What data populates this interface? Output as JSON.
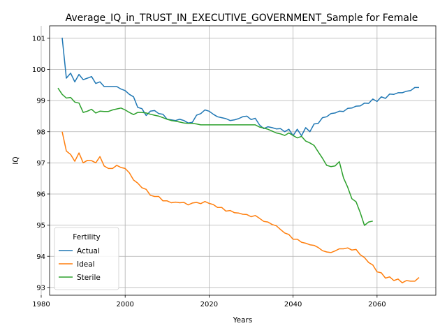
{
  "chart_data": {
    "type": "line",
    "title": "Average_IQ_in_TRUST_IN_EXECUTIVE_GOVERNMENT_Sample for Female",
    "xlabel": "Years",
    "ylabel": "IQ",
    "xlim": [
      1982,
      2074
    ],
    "ylim": [
      92.75,
      101.4
    ],
    "xticks": [
      1980,
      2000,
      2020,
      2040,
      2060
    ],
    "yticks": [
      93,
      94,
      95,
      96,
      97,
      98,
      99,
      100,
      101
    ],
    "grid": true,
    "legend": {
      "title": "Fertility",
      "position": "lower-left"
    },
    "series": [
      {
        "name": "Actual",
        "color": "#1f77b4",
        "x": [
          1985,
          1986,
          1987,
          1988,
          1989,
          1990,
          1991,
          1992,
          1993,
          1994,
          1995,
          1996,
          1997,
          1998,
          1999,
          2000,
          2001,
          2002,
          2003,
          2004,
          2005,
          2006,
          2007,
          2008,
          2009,
          2010,
          2011,
          2012,
          2013,
          2014,
          2015,
          2016,
          2017,
          2018,
          2019,
          2020,
          2021,
          2022,
          2023,
          2024,
          2025,
          2026,
          2027,
          2028,
          2029,
          2030,
          2031,
          2032,
          2033,
          2034,
          2035,
          2036,
          2037,
          2038,
          2039,
          2040,
          2041,
          2042,
          2043,
          2044,
          2045,
          2046,
          2047,
          2048,
          2049,
          2050,
          2051,
          2052,
          2053,
          2054,
          2055,
          2056,
          2057,
          2058,
          2059,
          2060,
          2061,
          2062,
          2063,
          2064,
          2065,
          2066,
          2067,
          2068,
          2069,
          2070
        ],
        "y": [
          101.02,
          99.72,
          99.88,
          99.6,
          99.84,
          99.67,
          99.72,
          99.77,
          99.55,
          99.6,
          99.45,
          99.45,
          99.45,
          99.45,
          99.37,
          99.32,
          99.2,
          99.12,
          98.78,
          98.74,
          98.52,
          98.66,
          98.68,
          98.58,
          98.56,
          98.4,
          98.38,
          98.36,
          98.4,
          98.36,
          98.28,
          98.3,
          98.53,
          98.58,
          98.7,
          98.66,
          98.56,
          98.48,
          98.45,
          98.42,
          98.36,
          98.38,
          98.42,
          98.48,
          98.5,
          98.39,
          98.43,
          98.22,
          98.1,
          98.16,
          98.13,
          98.09,
          98.1,
          98.0,
          98.08,
          97.87,
          98.08,
          97.87,
          98.13,
          98.0,
          98.25,
          98.27,
          98.45,
          98.48,
          98.58,
          98.6,
          98.66,
          98.65,
          98.75,
          98.76,
          98.82,
          98.83,
          98.92,
          98.91,
          99.05,
          98.97,
          99.12,
          99.07,
          99.21,
          99.2,
          99.25,
          99.25,
          99.3,
          99.32,
          99.42,
          99.42
        ]
      },
      {
        "name": "Ideal",
        "color": "#ff7f0e",
        "x": [
          1985,
          1986,
          1987,
          1988,
          1989,
          1990,
          1991,
          1992,
          1993,
          1994,
          1995,
          1996,
          1997,
          1998,
          1999,
          2000,
          2001,
          2002,
          2003,
          2004,
          2005,
          2006,
          2007,
          2008,
          2009,
          2010,
          2011,
          2012,
          2013,
          2014,
          2015,
          2016,
          2017,
          2018,
          2019,
          2020,
          2021,
          2022,
          2023,
          2024,
          2025,
          2026,
          2027,
          2028,
          2029,
          2030,
          2031,
          2032,
          2033,
          2034,
          2035,
          2036,
          2037,
          2038,
          2039,
          2040,
          2041,
          2042,
          2043,
          2044,
          2045,
          2046,
          2047,
          2048,
          2049,
          2050,
          2051,
          2052,
          2053,
          2054,
          2055,
          2056,
          2057,
          2058,
          2059,
          2060,
          2061,
          2062,
          2063,
          2064,
          2065,
          2066,
          2067,
          2068,
          2069,
          2070
        ],
        "y": [
          98.0,
          97.38,
          97.27,
          97.05,
          97.32,
          97.0,
          97.08,
          97.07,
          97.0,
          97.2,
          96.9,
          96.82,
          96.82,
          96.92,
          96.85,
          96.82,
          96.68,
          96.45,
          96.35,
          96.2,
          96.15,
          95.96,
          95.92,
          95.92,
          95.78,
          95.78,
          95.72,
          95.74,
          95.72,
          95.73,
          95.65,
          95.71,
          95.73,
          95.69,
          95.76,
          95.7,
          95.66,
          95.57,
          95.57,
          95.45,
          95.47,
          95.4,
          95.39,
          95.35,
          95.34,
          95.27,
          95.31,
          95.22,
          95.12,
          95.1,
          95.02,
          94.98,
          94.86,
          94.75,
          94.7,
          94.55,
          94.55,
          94.45,
          94.42,
          94.37,
          94.35,
          94.28,
          94.18,
          94.14,
          94.12,
          94.17,
          94.24,
          94.24,
          94.27,
          94.2,
          94.22,
          94.05,
          93.96,
          93.8,
          93.72,
          93.5,
          93.47,
          93.3,
          93.34,
          93.22,
          93.27,
          93.15,
          93.22,
          93.2,
          93.2,
          93.32
        ]
      },
      {
        "name": "Sterile",
        "color": "#2ca02c",
        "x": [
          1984,
          1985,
          1986,
          1987,
          1988,
          1989,
          1990,
          1991,
          1992,
          1993,
          1994,
          1995,
          1996,
          1997,
          1998,
          1999,
          2000,
          2001,
          2002,
          2003,
          2004,
          2005,
          2006,
          2007,
          2008,
          2009,
          2010,
          2011,
          2012,
          2013,
          2014,
          2015,
          2016,
          2017,
          2018,
          2019,
          2020,
          2021,
          2022,
          2023,
          2024,
          2025,
          2026,
          2027,
          2028,
          2029,
          2030,
          2031,
          2032,
          2033,
          2034,
          2035,
          2036,
          2037,
          2038,
          2039,
          2040,
          2041,
          2042,
          2043,
          2044,
          2045,
          2046,
          2047,
          2048,
          2049,
          2050,
          2051,
          2052,
          2053,
          2054,
          2055,
          2056,
          2057,
          2058,
          2059
        ],
        "y": [
          99.4,
          99.2,
          99.08,
          99.1,
          98.95,
          98.92,
          98.62,
          98.66,
          98.72,
          98.6,
          98.66,
          98.65,
          98.65,
          98.7,
          98.73,
          98.76,
          98.7,
          98.62,
          98.55,
          98.62,
          98.62,
          98.6,
          98.56,
          98.53,
          98.5,
          98.45,
          98.4,
          98.36,
          98.34,
          98.31,
          98.28,
          98.27,
          98.27,
          98.25,
          98.22,
          98.22,
          98.22,
          98.22,
          98.22,
          98.22,
          98.22,
          98.22,
          98.22,
          98.22,
          98.22,
          98.22,
          98.22,
          98.22,
          98.15,
          98.12,
          98.08,
          98.02,
          97.96,
          97.93,
          97.88,
          97.96,
          97.88,
          97.8,
          97.85,
          97.7,
          97.64,
          97.56,
          97.35,
          97.15,
          96.92,
          96.88,
          96.9,
          97.04,
          96.52,
          96.22,
          95.85,
          95.75,
          95.4,
          94.99,
          95.1,
          95.13
        ]
      }
    ]
  }
}
